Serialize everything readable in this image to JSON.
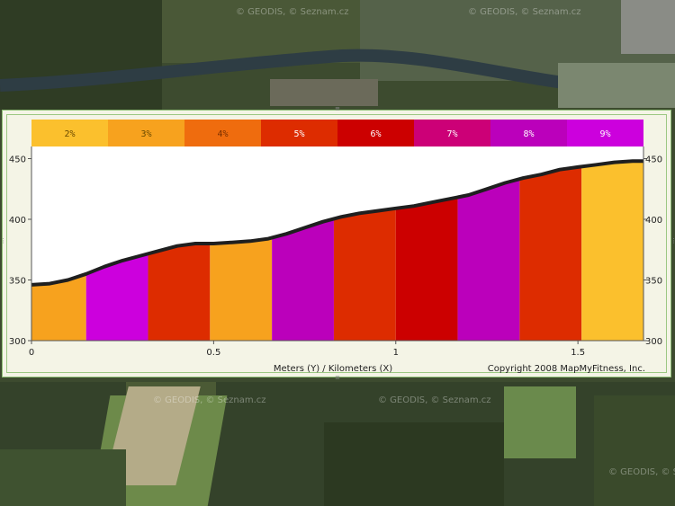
{
  "map": {
    "watermark": "© GEODIS, © Seznam.cz"
  },
  "chart_data": {
    "type": "area",
    "xlabel": "Meters (Y) / Kilometers (X)",
    "copyright": "Copyright 2008 MapMyFitness, Inc.",
    "xlim": [
      0,
      1.68
    ],
    "ylim": [
      300,
      460
    ],
    "x_ticks": [
      {
        "value": 0,
        "label": "0"
      },
      {
        "value": 0.5,
        "label": "0.5"
      },
      {
        "value": 1,
        "label": "1"
      },
      {
        "value": 1.5,
        "label": "1.5"
      }
    ],
    "y_ticks": [
      {
        "value": 450,
        "label": "450"
      },
      {
        "value": 400,
        "label": "400"
      },
      {
        "value": 350,
        "label": "350"
      },
      {
        "value": 300,
        "label": "300"
      }
    ],
    "grade_legend": [
      {
        "label": "2%",
        "color": "#fbc02d",
        "text_color": "#6b4a00"
      },
      {
        "label": "3%",
        "color": "#f7a21e",
        "text_color": "#6b4a00"
      },
      {
        "label": "4%",
        "color": "#ef6c0e",
        "text_color": "#7a3000"
      },
      {
        "label": "5%",
        "color": "#dd2c00",
        "text_color": "#ffffff"
      },
      {
        "label": "6%",
        "color": "#cc0000",
        "text_color": "#ffffff"
      },
      {
        "label": "7%",
        "color": "#cc0077",
        "text_color": "#ffffff"
      },
      {
        "label": "8%",
        "color": "#bb00bb",
        "text_color": "#ffffff"
      },
      {
        "label": "9%",
        "color": "#cc00dd",
        "text_color": "#ffffff"
      }
    ],
    "series": [
      {
        "x": [
          0,
          0.05,
          0.1,
          0.15,
          0.2,
          0.25,
          0.3,
          0.35,
          0.4,
          0.45,
          0.5,
          0.55,
          0.6,
          0.65,
          0.7,
          0.75,
          0.8,
          0.85,
          0.9,
          0.95,
          1.0,
          1.05,
          1.1,
          1.15,
          1.2,
          1.25,
          1.3,
          1.35,
          1.4,
          1.45,
          1.5,
          1.55,
          1.6,
          1.65,
          1.68
        ],
        "y": [
          346,
          347,
          350,
          355,
          361,
          366,
          370,
          374,
          378,
          380,
          380,
          381,
          382,
          384,
          388,
          393,
          398,
          402,
          405,
          407,
          409,
          411,
          414,
          417,
          420,
          425,
          430,
          434,
          437,
          441,
          443,
          445,
          447,
          448,
          448
        ]
      }
    ],
    "grade_segments": [
      {
        "x0": 0.0,
        "x1": 0.15,
        "grade": "3%",
        "color": "#f7a21e"
      },
      {
        "x0": 0.15,
        "x1": 0.32,
        "grade": "9%",
        "color": "#cc00dd"
      },
      {
        "x0": 0.32,
        "x1": 0.49,
        "grade": "5%",
        "color": "#dd2c00"
      },
      {
        "x0": 0.49,
        "x1": 0.66,
        "grade": "3%",
        "color": "#f7a21e"
      },
      {
        "x0": 0.66,
        "x1": 0.83,
        "grade": "8%",
        "color": "#bb00bb"
      },
      {
        "x0": 0.83,
        "x1": 1.0,
        "grade": "5%",
        "color": "#dd2c00"
      },
      {
        "x0": 1.0,
        "x1": 1.17,
        "grade": "6%",
        "color": "#cc0000"
      },
      {
        "x0": 1.17,
        "x1": 1.34,
        "grade": "8%",
        "color": "#bb00bb"
      },
      {
        "x0": 1.34,
        "x1": 1.51,
        "grade": "5%",
        "color": "#dd2c00"
      },
      {
        "x0": 1.51,
        "x1": 1.68,
        "grade": "2%",
        "color": "#fbc02d"
      }
    ]
  }
}
